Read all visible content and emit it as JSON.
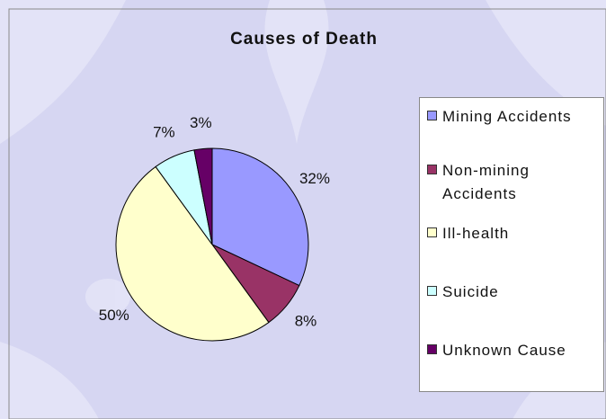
{
  "chart_data": {
    "type": "pie",
    "title": "Causes of Death",
    "categories": [
      "Mining Accidents",
      "Non-mining Accidents",
      "Ill-health",
      "Suicide",
      "Unknown Cause"
    ],
    "values": [
      32,
      8,
      50,
      7,
      3
    ],
    "value_labels": [
      "32%",
      "8%",
      "50%",
      "7%",
      "3%"
    ],
    "colors": [
      "#9999ff",
      "#993366",
      "#ffffcc",
      "#ccffff",
      "#660066"
    ]
  }
}
